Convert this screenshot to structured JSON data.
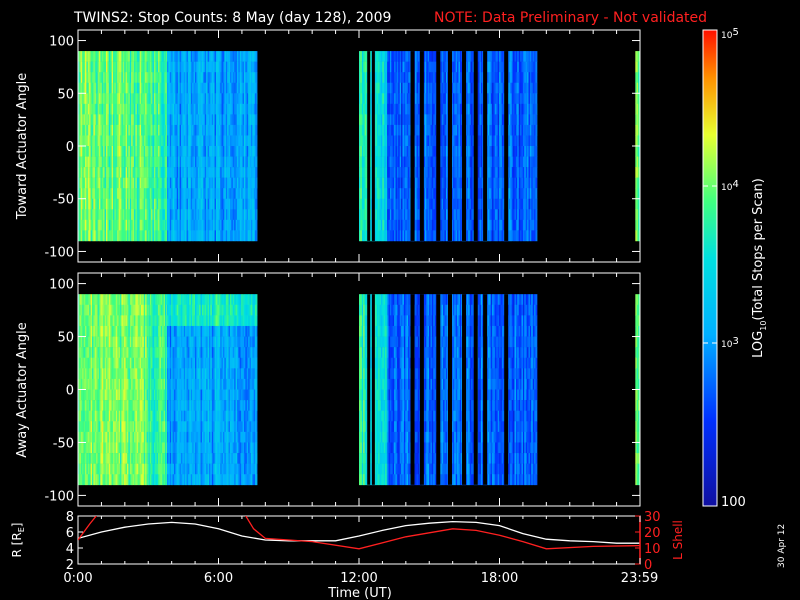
{
  "header": {
    "title": "TWINS2: Stop Counts:  8 May (day 128), 2009",
    "note": "NOTE: Data Preliminary - Not validated"
  },
  "panels": {
    "top_ylabel": "Toward Actuator Angle",
    "bottom_ylabel": "Away Actuator Angle",
    "angle_ticks": [
      "100",
      "50",
      "0",
      "-50",
      "-100"
    ]
  },
  "orbit": {
    "left_label": "R [R",
    "left_sub": "E",
    "left_close": "]",
    "left_ticks": [
      "8",
      "6",
      "4",
      "2"
    ],
    "right_label": "L Shell",
    "right_ticks": [
      "30",
      "20",
      "10",
      "0"
    ]
  },
  "xaxis": {
    "ticks": [
      "0:00",
      "6:00",
      "12:00",
      "18:00",
      "23:59"
    ],
    "label": "Time (UT)"
  },
  "colorbar": {
    "top_tick_base": "10",
    "top_tick_exp": "5",
    "mid_tick_base": "10",
    "mid_tick_exp": "4",
    "low_tick_base": "10",
    "low_tick_exp": "3",
    "bottom_tick": "100",
    "label_pre": "LOG",
    "label_sub": "10",
    "label_post": "(Total Stops per Scan)"
  },
  "side_date": "30 Apr 12",
  "colors": {
    "note": "#ff2020",
    "lshell": "#ff2020",
    "radius": "#ffffff"
  },
  "chart_data": [
    {
      "type": "heatmap",
      "title": "Toward Actuator Angle",
      "xlabel": "Time (UT)",
      "ylabel": "Toward Actuator Angle",
      "xlim": [
        0,
        24
      ],
      "ylim": [
        -110,
        110
      ],
      "y_extent": [
        -90,
        90
      ],
      "color_scale": "log",
      "color_range": [
        100,
        100000
      ],
      "segments": [
        {
          "start": 0.0,
          "end": 3.0,
          "level": 4.0
        },
        {
          "start": 3.0,
          "end": 3.8,
          "level": 3.8
        },
        {
          "start": 3.8,
          "end": 7.65,
          "level": 3.05
        },
        {
          "start": 12.0,
          "end": 12.4,
          "level": 3.7
        },
        {
          "start": 12.4,
          "end": 13.2,
          "level": 3.5
        },
        {
          "start": 13.2,
          "end": 19.6,
          "level": 2.75
        },
        {
          "start": 23.8,
          "end": 24.0,
          "level": 3.9
        }
      ]
    },
    {
      "type": "heatmap",
      "title": "Away Actuator Angle",
      "xlabel": "Time (UT)",
      "ylabel": "Away Actuator Angle",
      "xlim": [
        0,
        24
      ],
      "ylim": [
        -110,
        110
      ],
      "y_extent": [
        -90,
        90
      ],
      "color_scale": "log",
      "color_range": [
        100,
        100000
      ],
      "segments": [
        {
          "start": 0.0,
          "end": 3.0,
          "level": 4.0
        },
        {
          "start": 3.0,
          "end": 3.8,
          "level": 3.8
        },
        {
          "start": 3.8,
          "end": 7.65,
          "level": 3.05
        },
        {
          "start": 12.0,
          "end": 12.4,
          "level": 3.7
        },
        {
          "start": 12.4,
          "end": 13.2,
          "level": 3.5
        },
        {
          "start": 13.2,
          "end": 19.6,
          "level": 2.75
        },
        {
          "start": 23.8,
          "end": 24.0,
          "level": 3.9
        }
      ]
    },
    {
      "type": "line",
      "xlabel": "Time (UT)",
      "xlim": [
        0,
        24
      ],
      "series": [
        {
          "axis": "left",
          "ylim": [
            2,
            8
          ],
          "x": [
            0,
            1,
            2,
            3,
            4,
            5,
            6,
            7,
            8,
            9,
            10,
            11,
            12,
            13,
            14,
            15,
            16,
            17,
            18,
            19,
            20,
            21,
            22,
            23,
            24
          ],
          "y": [
            5.2,
            6.0,
            6.6,
            7.0,
            7.2,
            7.0,
            6.4,
            5.5,
            5.0,
            4.9,
            4.9,
            4.9,
            5.5,
            6.2,
            6.8,
            7.1,
            7.3,
            7.2,
            6.8,
            5.8,
            5.1,
            4.9,
            4.8,
            4.6,
            4.6
          ]
        },
        {
          "axis": "right",
          "ylim": [
            0,
            30
          ],
          "x": [
            0,
            0.5,
            1.0,
            7.0,
            7.5,
            8.0,
            10.0,
            12.0,
            14.0,
            16.0,
            17.0,
            18.0,
            19.0,
            20.0,
            22.0,
            24.0
          ],
          "y": [
            15,
            25,
            34,
            34,
            22,
            16,
            14,
            9.5,
            17,
            22,
            21,
            18,
            14,
            9.5,
            11,
            11.5
          ]
        }
      ]
    }
  ]
}
